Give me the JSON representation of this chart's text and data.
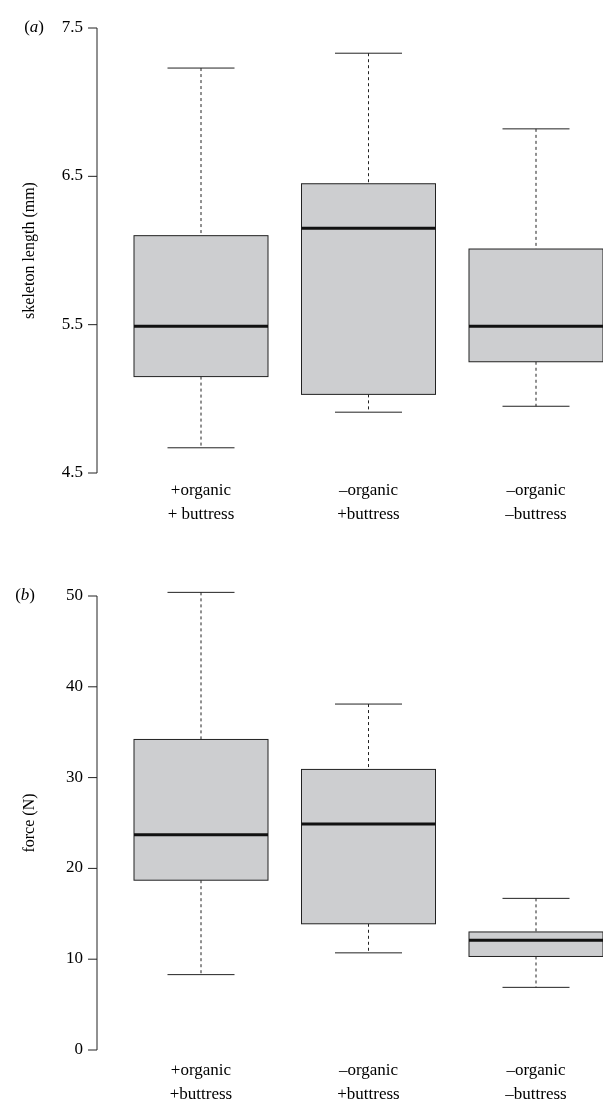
{
  "chart_data": [
    {
      "type": "box",
      "title": "(a)",
      "ylabel": "skeleton length (mm)",
      "categories": [
        "+organic\n+ buttress",
        "–organic\n+buttress",
        "–organic\n–buttress"
      ],
      "ylim": [
        4.5,
        7.5
      ],
      "yticks": [
        {
          "value": 4.5,
          "label": "4.5"
        },
        {
          "value": 5.5,
          "label": "5.5"
        },
        {
          "value": 6.5,
          "label": "6.5"
        },
        {
          "value": 7.5,
          "label": "7.5"
        }
      ],
      "color": "#cdced0",
      "boxes": [
        {
          "low": 4.67,
          "q1": 5.15,
          "median": 5.49,
          "q3": 6.1,
          "high": 7.23
        },
        {
          "low": 4.91,
          "q1": 5.03,
          "median": 6.15,
          "q3": 6.45,
          "high": 7.33
        },
        {
          "low": 4.95,
          "q1": 5.25,
          "median": 5.49,
          "q3": 6.01,
          "high": 6.82
        }
      ]
    },
    {
      "type": "box",
      "title": "(b)",
      "ylabel": "force (N)",
      "categories": [
        "+organic\n+buttress",
        "–organic\n+buttress",
        "–organic\n–buttress"
      ],
      "ylim": [
        0,
        50
      ],
      "yticks": [
        0,
        10,
        20,
        30,
        40,
        50
      ],
      "color": "#cdced0",
      "boxes": [
        {
          "low": 8.3,
          "q1": 18.7,
          "median": 23.7,
          "q3": 34.2,
          "high": 50.4
        },
        {
          "low": 10.7,
          "q1": 13.9,
          "median": 24.9,
          "q3": 30.9,
          "high": 38.1
        },
        {
          "low": 6.9,
          "q1": 10.3,
          "median": 12.1,
          "q3": 13,
          "high": 16.7
        }
      ]
    }
  ]
}
